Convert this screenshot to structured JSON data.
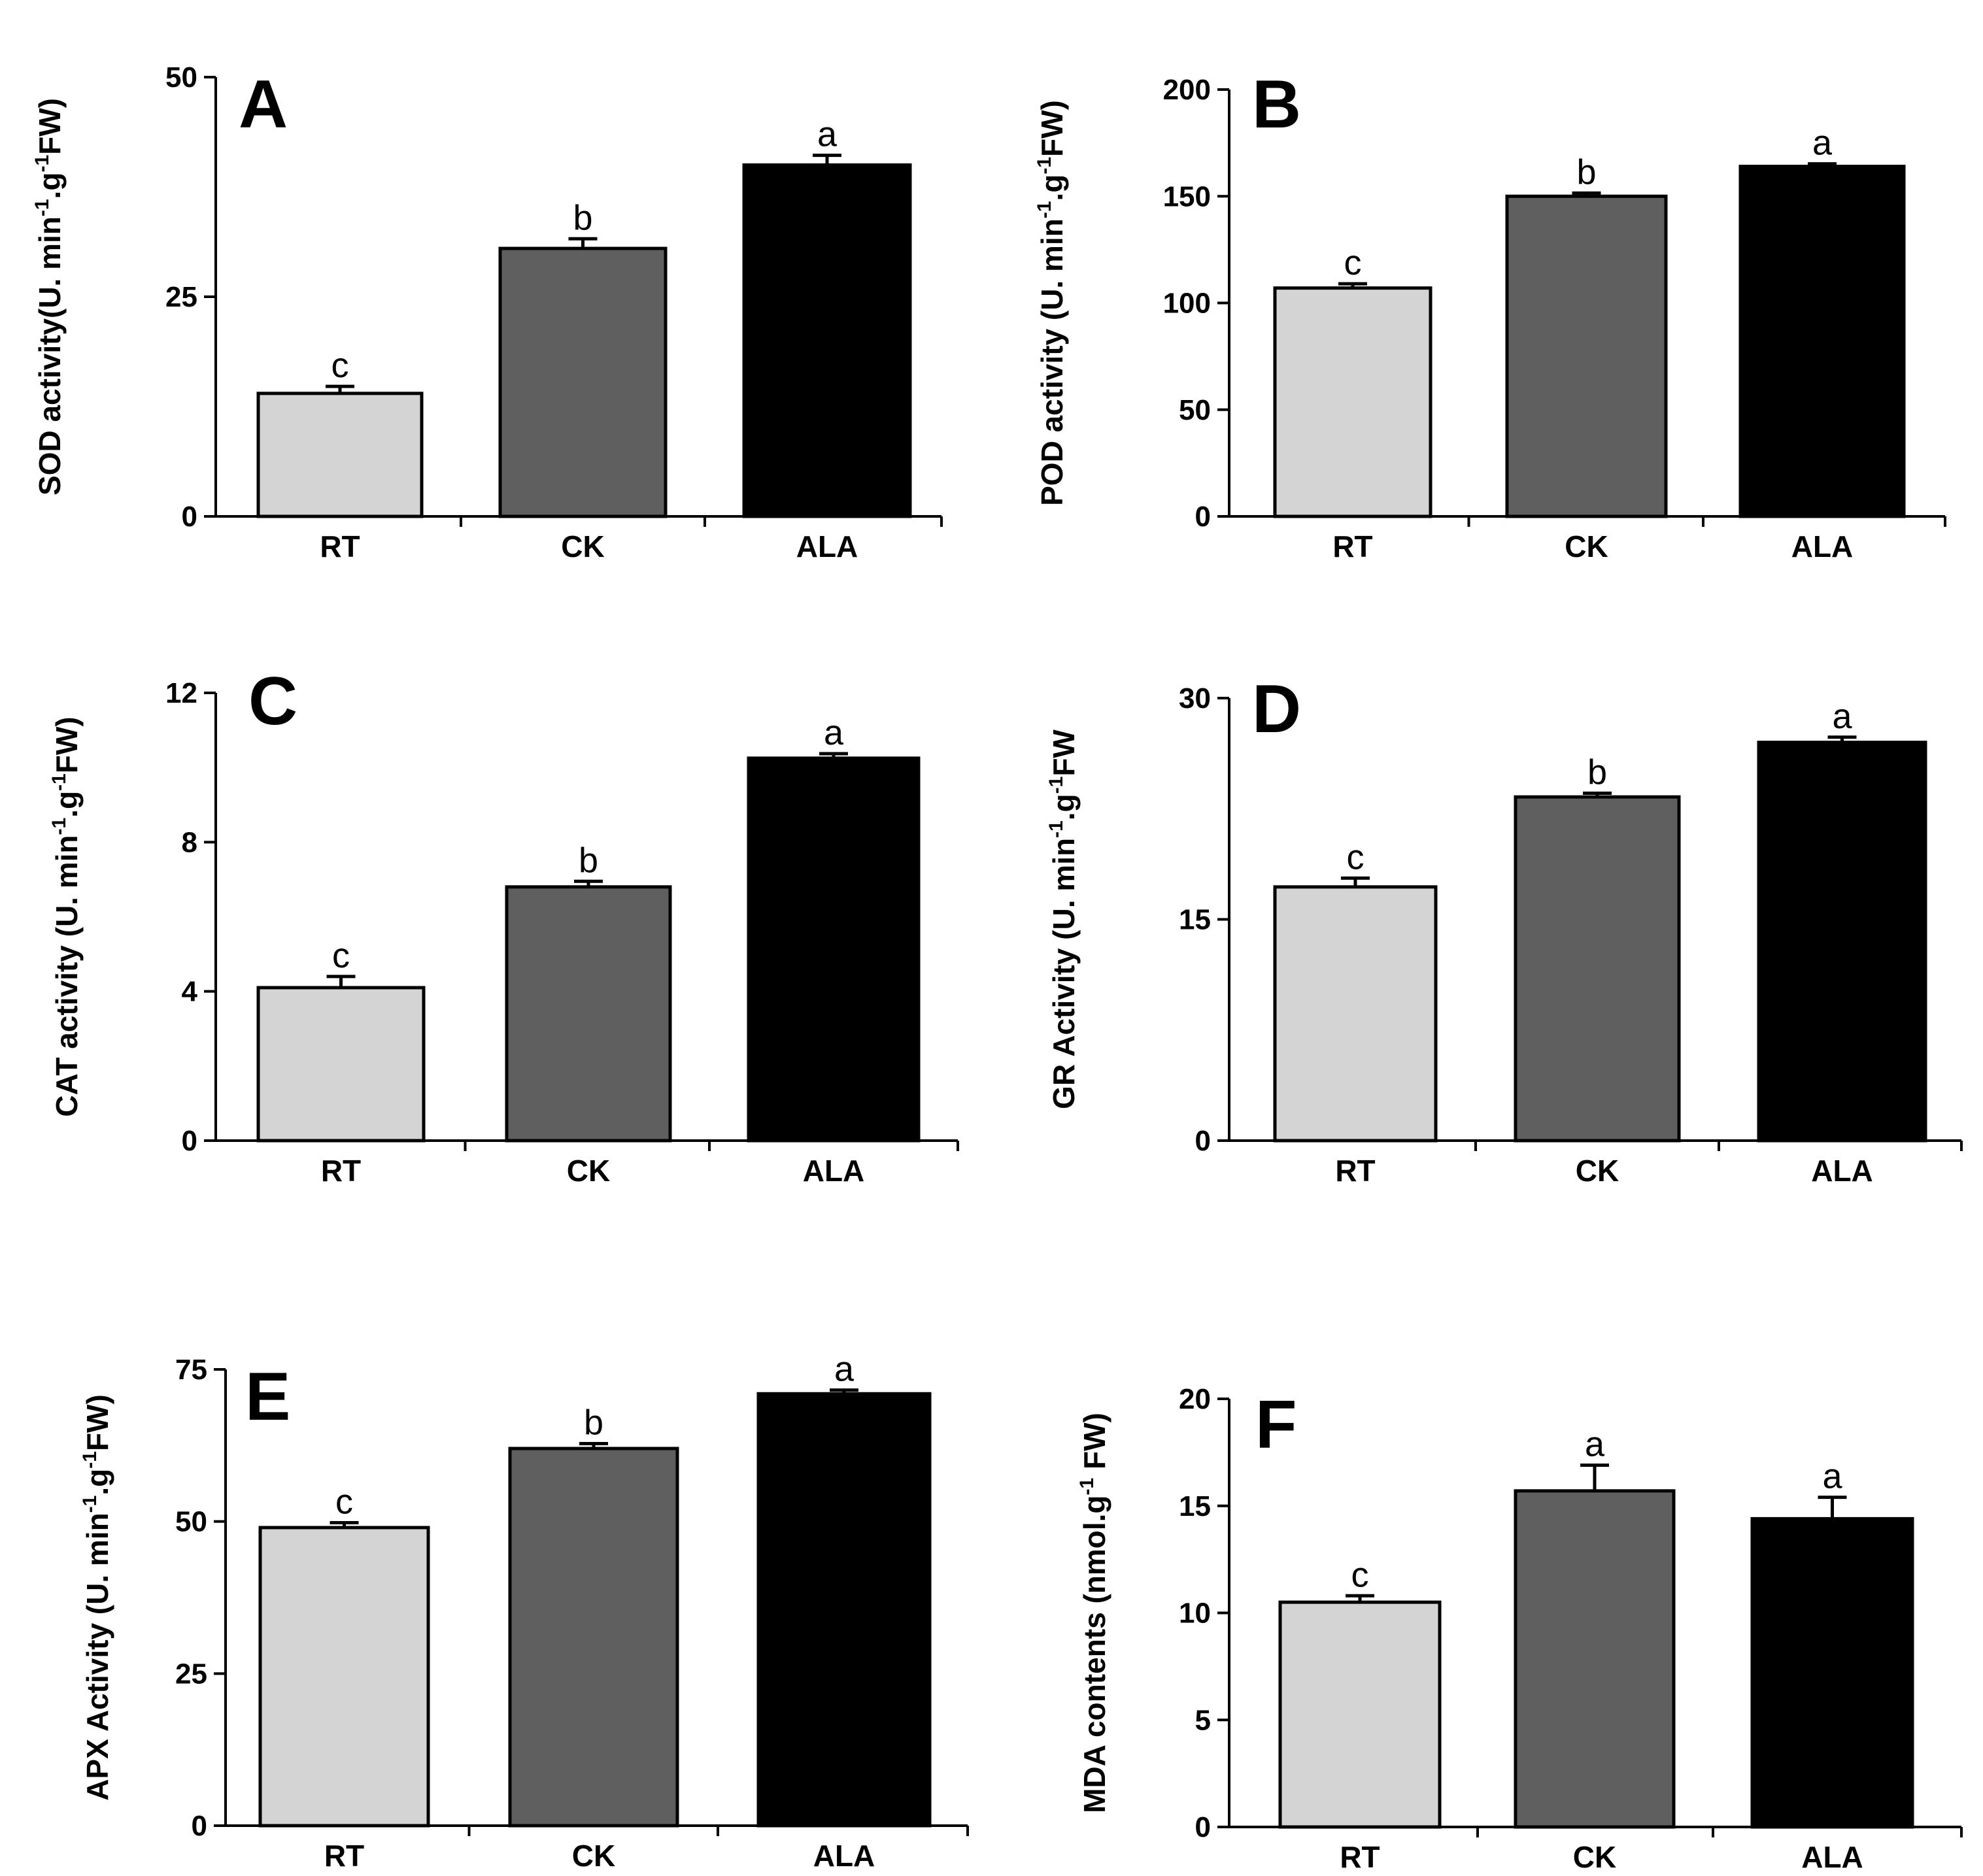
{
  "colors": {
    "RT": "#d4d4d4",
    "CK": "#5f5f5f",
    "ALA": "#000000"
  },
  "chart_data": [
    {
      "type": "bar",
      "panel": "A",
      "categories": [
        "RT",
        "CK",
        "ALA"
      ],
      "values": [
        14,
        30.5,
        40
      ],
      "errors": [
        0.8,
        1.1,
        1.1
      ],
      "significance": [
        "c",
        "b",
        "a"
      ],
      "ylabel_parts": [
        "SOD activity(U. min",
        "-1",
        ".g",
        "-1",
        "FW)"
      ],
      "ylim": [
        0,
        50
      ],
      "yticks": [
        0,
        25,
        50
      ]
    },
    {
      "type": "bar",
      "panel": "B",
      "categories": [
        "RT",
        "CK",
        "ALA"
      ],
      "values": [
        107,
        150,
        164
      ],
      "errors": [
        2,
        1.5,
        1.2
      ],
      "significance": [
        "c",
        "b",
        "a"
      ],
      "ylabel_parts": [
        "POD activity (U. min",
        "-1",
        ".g",
        "-1",
        "FW)"
      ],
      "ylim": [
        0,
        200
      ],
      "yticks": [
        0,
        50,
        100,
        150,
        200
      ]
    },
    {
      "type": "bar",
      "panel": "C",
      "categories": [
        "RT",
        "CK",
        "ALA"
      ],
      "values": [
        4.1,
        6.8,
        10.25
      ],
      "errors": [
        0.3,
        0.15,
        0.12
      ],
      "significance": [
        "c",
        "b",
        "a"
      ],
      "ylabel_parts": [
        "CAT activity (U. min",
        "-1",
        ".g",
        "-1",
        "FW)"
      ],
      "ylim": [
        0,
        12
      ],
      "yticks": [
        0,
        4,
        8,
        12
      ]
    },
    {
      "type": "bar",
      "panel": "D",
      "categories": [
        "RT",
        "CK",
        "ALA"
      ],
      "values": [
        17.2,
        23.3,
        27
      ],
      "errors": [
        0.6,
        0.25,
        0.35
      ],
      "significance": [
        "c",
        "b",
        "a"
      ],
      "ylabel_parts": [
        "GR Activity (U. min",
        "-1",
        ".g",
        "-1",
        "FW"
      ],
      "ylim": [
        0,
        30
      ],
      "yticks": [
        0,
        15,
        30
      ]
    },
    {
      "type": "bar",
      "panel": "E",
      "categories": [
        "RT",
        "CK",
        "ALA"
      ],
      "values": [
        49,
        62,
        71
      ],
      "errors": [
        0.8,
        0.8,
        0.6
      ],
      "significance": [
        "c",
        "b",
        "a"
      ],
      "ylabel_parts": [
        "APX Activity (U. min",
        "-1",
        ".g",
        "-1",
        "FW)"
      ],
      "ylim": [
        0,
        75
      ],
      "yticks": [
        0,
        25,
        50,
        75
      ]
    },
    {
      "type": "bar",
      "panel": "F",
      "categories": [
        "RT",
        "CK",
        "ALA"
      ],
      "values": [
        10.5,
        15.7,
        14.4
      ],
      "errors": [
        0.3,
        1.2,
        1.0
      ],
      "significance": [
        "c",
        "a",
        "a"
      ],
      "ylabel_parts": [
        "MDA contents (nmol.g",
        "-1",
        " FW)"
      ],
      "ylim": [
        0,
        20
      ],
      "yticks": [
        0,
        5,
        10,
        15,
        20
      ]
    }
  ]
}
